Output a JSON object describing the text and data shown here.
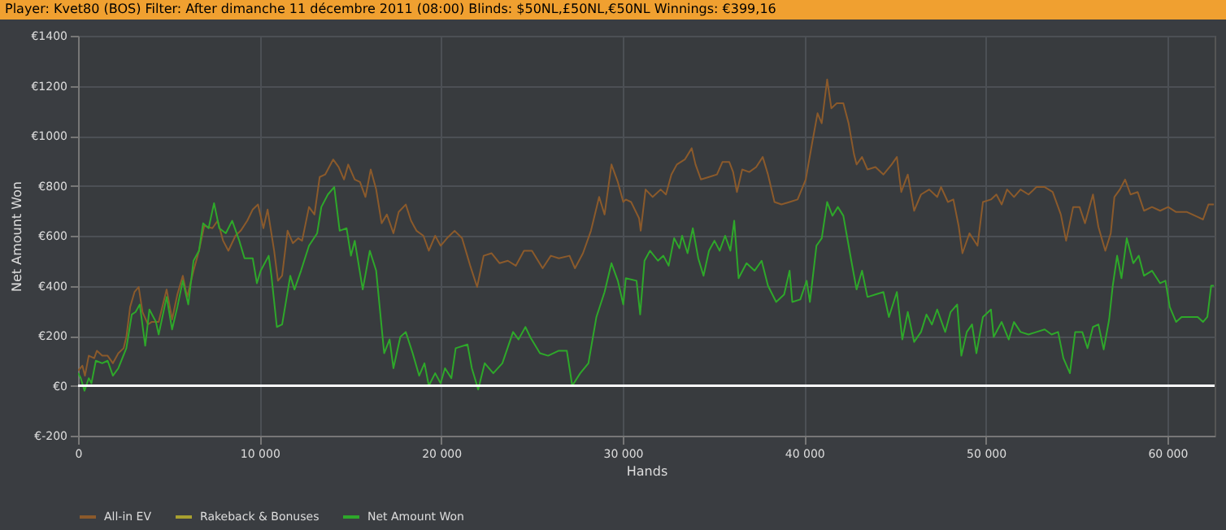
{
  "chart_data": {
    "type": "line",
    "title": "Player: Kvet80 (BOS) Filter: After dimanche 11 décembre 2011 (08:00) Blinds: $50NL,£50NL,€50NL Winnings: €399,16",
    "xlabel": "Hands",
    "ylabel": "Net Amount Won",
    "xlim": [
      0,
      62600
    ],
    "xticks": [
      0,
      {
        "value": 10000,
        "label": "10 000"
      },
      {
        "value": 20000,
        "label": "20 000"
      },
      {
        "value": 30000,
        "label": "30 000"
      },
      {
        "value": 40000,
        "label": "40 000"
      },
      {
        "value": 50000,
        "label": "50 000"
      },
      {
        "value": 60000,
        "label": "60 000"
      }
    ],
    "ylim": [
      -200,
      1400
    ],
    "yticks": [
      {
        "value": -200,
        "label": "€-200"
      },
      {
        "value": 0,
        "label": "€0"
      },
      {
        "value": 200,
        "label": "€200"
      },
      {
        "value": 400,
        "label": "€400"
      },
      {
        "value": 600,
        "label": "€600"
      },
      {
        "value": 800,
        "label": "€800"
      },
      {
        "value": 1000,
        "label": "€1000"
      },
      {
        "value": 1200,
        "label": "€1200"
      },
      {
        "value": 1400,
        "label": "€1400"
      }
    ],
    "grid": true,
    "legend": "bottom",
    "ref_lines": [
      {
        "axis": "y",
        "value": 0,
        "color": "#ffffff"
      }
    ],
    "series": [
      {
        "name": "All-in EV",
        "color": "#8b5a2b",
        "x": [
          0,
          240,
          380,
          590,
          890,
          1040,
          1330,
          1630,
          1920,
          2220,
          2510,
          2660,
          2870,
          3110,
          3340,
          3550,
          3850,
          4050,
          4440,
          4880,
          5180,
          5470,
          5770,
          6010,
          6360,
          6660,
          6950,
          7400,
          7690,
          7990,
          8280,
          8670,
          8960,
          9320,
          9620,
          9910,
          10210,
          10440,
          10800,
          11010,
          11240,
          11540,
          11830,
          12130,
          12340,
          12720,
          13020,
          13310,
          13610,
          14050,
          14350,
          14650,
          14880,
          15240,
          15530,
          15830,
          16120,
          16420,
          16720,
          17010,
          17370,
          17660,
          18050,
          18340,
          18640,
          19020,
          19320,
          19670,
          19970,
          20320,
          20740,
          21150,
          21600,
          21980,
          22340,
          22780,
          23220,
          23670,
          24110,
          24560,
          25000,
          25590,
          26040,
          26480,
          27070,
          27370,
          27810,
          28250,
          28700,
          29000,
          29380,
          29730,
          30030,
          30170,
          30460,
          30900,
          30990,
          31260,
          31650,
          32090,
          32380,
          32680,
          32980,
          33420,
          33800,
          34010,
          34310,
          34750,
          35190,
          35490,
          35870,
          36080,
          36290,
          36580,
          36970,
          37350,
          37710,
          38000,
          38360,
          38740,
          39190,
          39630,
          40080,
          40430,
          40730,
          40960,
          41260,
          41490,
          41790,
          42150,
          42440,
          42740,
          42880,
          43180,
          43480,
          43920,
          44360,
          44810,
          45100,
          45340,
          45700,
          46050,
          46430,
          46880,
          47320,
          47530,
          47910,
          48210,
          48500,
          48710,
          49100,
          49540,
          49840,
          50280,
          50580,
          50870,
          51170,
          51550,
          51910,
          52350,
          52790,
          53240,
          53680,
          54130,
          54420,
          54810,
          55160,
          55460,
          55900,
          56200,
          56580,
          56880,
          57080,
          57380,
          57670,
          57970,
          58360,
          58710,
          59150,
          59600,
          60040,
          60480,
          61080,
          61670,
          61960,
          62260,
          62560
        ],
        "values": [
          60,
          80,
          40,
          120,
          110,
          140,
          120,
          120,
          90,
          130,
          150,
          195,
          315,
          375,
          395,
          295,
          245,
          255,
          255,
          385,
          265,
          365,
          440,
          355,
          460,
          540,
          640,
          630,
          660,
          580,
          540,
          600,
          620,
          660,
          705,
          725,
          630,
          705,
          540,
          420,
          440,
          620,
          570,
          590,
          580,
          715,
          685,
          835,
          845,
          905,
          875,
          825,
          885,
          825,
          815,
          755,
          865,
          785,
          650,
          685,
          610,
          695,
          725,
          660,
          620,
          600,
          540,
          600,
          560,
          590,
          620,
          590,
          480,
          395,
          520,
          530,
          490,
          500,
          480,
          540,
          540,
          470,
          520,
          510,
          520,
          470,
          530,
          620,
          755,
          685,
          885,
          815,
          735,
          745,
          735,
          670,
          620,
          785,
          755,
          785,
          765,
          845,
          885,
          905,
          950,
          885,
          825,
          835,
          845,
          895,
          895,
          855,
          775,
          865,
          855,
          875,
          915,
          845,
          735,
          725,
          735,
          745,
          825,
          970,
          1090,
          1050,
          1225,
          1110,
          1130,
          1130,
          1050,
          925,
          885,
          915,
          865,
          875,
          845,
          885,
          915,
          775,
          845,
          700,
          765,
          785,
          755,
          795,
          735,
          745,
          640,
          530,
          610,
          560,
          735,
          745,
          765,
          725,
          785,
          755,
          785,
          765,
          795,
          795,
          775,
          685,
          580,
          715,
          715,
          650,
          765,
          635,
          540,
          610,
          755,
          785,
          825,
          765,
          775,
          700,
          715,
          700,
          715,
          695,
          695,
          675,
          665,
          725,
          725
        ]
      },
      {
        "name": "Rakeback & Bonuses",
        "color": "#a8a030"
      },
      {
        "name": "Net Amount Won",
        "color": "#2ea82a",
        "x": [
          0,
          150,
          355,
          590,
          740,
          980,
          1330,
          1630,
          1920,
          2220,
          2660,
          2960,
          3170,
          3400,
          3700,
          3930,
          4290,
          4440,
          4880,
          5180,
          5470,
          5770,
          6070,
          6360,
          6660,
          6890,
          7190,
          7490,
          7780,
          8140,
          8490,
          8880,
          9170,
          9620,
          9850,
          10060,
          10500,
          10650,
          10950,
          11240,
          11690,
          11920,
          12280,
          12720,
          13170,
          13400,
          13760,
          14110,
          14410,
          14790,
          15030,
          15240,
          15680,
          16070,
          16420,
          16860,
          17160,
          17370,
          17750,
          18050,
          18430,
          18790,
          19080,
          19320,
          19670,
          19970,
          20210,
          20560,
          20800,
          21450,
          21690,
          22040,
          22400,
          22870,
          23370,
          23960,
          24260,
          24640,
          24940,
          25440,
          25890,
          26480,
          26920,
          27220,
          27660,
          28110,
          28550,
          29000,
          29380,
          29730,
          30030,
          30170,
          30760,
          30960,
          31200,
          31500,
          31940,
          32240,
          32530,
          32830,
          33120,
          33270,
          33570,
          33860,
          34160,
          34450,
          34750,
          35050,
          35340,
          35640,
          35930,
          36140,
          36380,
          36820,
          37260,
          37650,
          38000,
          38450,
          38890,
          39190,
          39340,
          39780,
          40130,
          40310,
          40670,
          40960,
          41260,
          41550,
          41850,
          42150,
          42590,
          42880,
          43180,
          43480,
          43920,
          44360,
          44660,
          45100,
          45400,
          45700,
          46050,
          46430,
          46730,
          47030,
          47320,
          47760,
          48060,
          48420,
          48650,
          48950,
          49240,
          49480,
          49840,
          50280,
          50430,
          50870,
          51260,
          51550,
          51910,
          52350,
          52790,
          53240,
          53620,
          53980,
          54270,
          54630,
          54920,
          55310,
          55600,
          55900,
          56200,
          56490,
          56790,
          56990,
          57230,
          57470,
          57760,
          58120,
          58420,
          58710,
          59150,
          59600,
          59890,
          60130,
          60480,
          60780,
          61220,
          61670,
          61960,
          62200,
          62410,
          62560
        ],
        "values": [
          51,
          30,
          -20,
          30,
          10,
          100,
          90,
          100,
          40,
          70,
          150,
          285,
          295,
          325,
          160,
          305,
          255,
          205,
          355,
          225,
          315,
          420,
          325,
          500,
          540,
          650,
          630,
          730,
          630,
          610,
          660,
          580,
          510,
          510,
          410,
          460,
          520,
          440,
          235,
          245,
          440,
          385,
          460,
          560,
          610,
          715,
          765,
          795,
          620,
          630,
          520,
          580,
          385,
          540,
          460,
          130,
          185,
          70,
          195,
          215,
          130,
          40,
          90,
          0,
          50,
          10,
          70,
          30,
          150,
          165,
          70,
          -15,
          90,
          50,
          90,
          215,
          185,
          235,
          190,
          130,
          120,
          140,
          140,
          0,
          50,
          90,
          275,
          375,
          490,
          420,
          325,
          430,
          420,
          285,
          500,
          540,
          500,
          520,
          480,
          590,
          550,
          600,
          530,
          630,
          510,
          440,
          540,
          580,
          540,
          600,
          540,
          660,
          430,
          490,
          460,
          500,
          400,
          335,
          365,
          460,
          335,
          345,
          420,
          335,
          560,
          590,
          735,
          680,
          715,
          680,
          500,
          385,
          460,
          355,
          365,
          375,
          275,
          375,
          185,
          295,
          175,
          215,
          285,
          245,
          305,
          215,
          295,
          325,
          120,
          215,
          245,
          130,
          275,
          305,
          195,
          255,
          185,
          255,
          215,
          205,
          215,
          225,
          205,
          215,
          110,
          50,
          215,
          215,
          150,
          235,
          245,
          145,
          265,
          400,
          520,
          430,
          590,
          490,
          520,
          440,
          460,
          410,
          420,
          315,
          255,
          275,
          275,
          275,
          255,
          275,
          400,
          400
        ]
      }
    ]
  }
}
